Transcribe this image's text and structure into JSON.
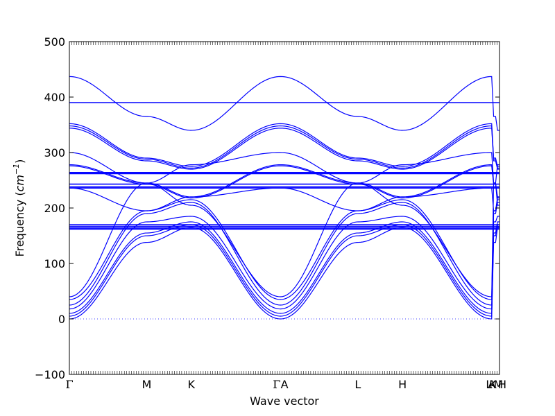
{
  "chart_data": {
    "type": "line",
    "xlabel": "Wave vector",
    "ylabel_prefix": "Frequency (",
    "ylabel_unit_base": "cm",
    "ylabel_unit_exp": "−1",
    "ylabel_suffix": ")",
    "ylim": [
      -100,
      500
    ],
    "yticks": [
      -100,
      0,
      100,
      200,
      300,
      400,
      500
    ],
    "grid": false,
    "legend": "none",
    "line_color": "#0000ff",
    "zero_line": {
      "y": 0,
      "style": "dotted",
      "color": "#0000ff"
    },
    "x_segments": [
      {
        "from": "Γ",
        "to": "M",
        "length": 1.0
      },
      {
        "from": "M",
        "to": "K",
        "length": 0.577
      },
      {
        "from": "K",
        "to": "Γ",
        "length": 1.155
      },
      {
        "from": "A",
        "to": "L",
        "length": 1.0
      },
      {
        "from": "L",
        "to": "H",
        "length": 0.577
      },
      {
        "from": "H",
        "to": "A",
        "length": 1.155
      },
      {
        "from": "L",
        "to": "M",
        "length": 0.05
      },
      {
        "from": "K",
        "to": "H",
        "length": 0.05
      }
    ],
    "xtick_labels": [
      "Γ",
      "M",
      "K",
      "Γ",
      "A",
      "L",
      "H",
      "A",
      "L",
      "M",
      "K",
      "H"
    ],
    "flat_bands": [
      390,
      264,
      262,
      243,
      238,
      236,
      170,
      167,
      164,
      162
    ],
    "series": [
      {
        "values": [
          437,
          365,
          340,
          437
        ]
      },
      {
        "values": [
          352,
          290,
          275,
          352
        ]
      },
      {
        "values": [
          348,
          288,
          272,
          348
        ]
      },
      {
        "values": [
          344,
          285,
          270,
          344
        ]
      },
      {
        "values": [
          300,
          245,
          278,
          300
        ]
      },
      {
        "values": [
          278,
          245,
          220,
          278
        ]
      },
      {
        "values": [
          276,
          243,
          218,
          276
        ]
      },
      {
        "values": [
          236,
          195,
          220,
          236
        ]
      },
      {
        "values": [
          40,
          245,
          205,
          40
        ]
      },
      {
        "values": [
          35,
          195,
          215,
          35
        ]
      },
      {
        "values": [
          25,
          190,
          210,
          25
        ]
      },
      {
        "values": [
          18,
          175,
          185,
          18
        ]
      },
      {
        "values": [
          10,
          155,
          175,
          10
        ]
      },
      {
        "values": [
          5,
          150,
          170,
          5
        ]
      },
      {
        "values": [
          0,
          138,
          165,
          0
        ]
      }
    ]
  }
}
